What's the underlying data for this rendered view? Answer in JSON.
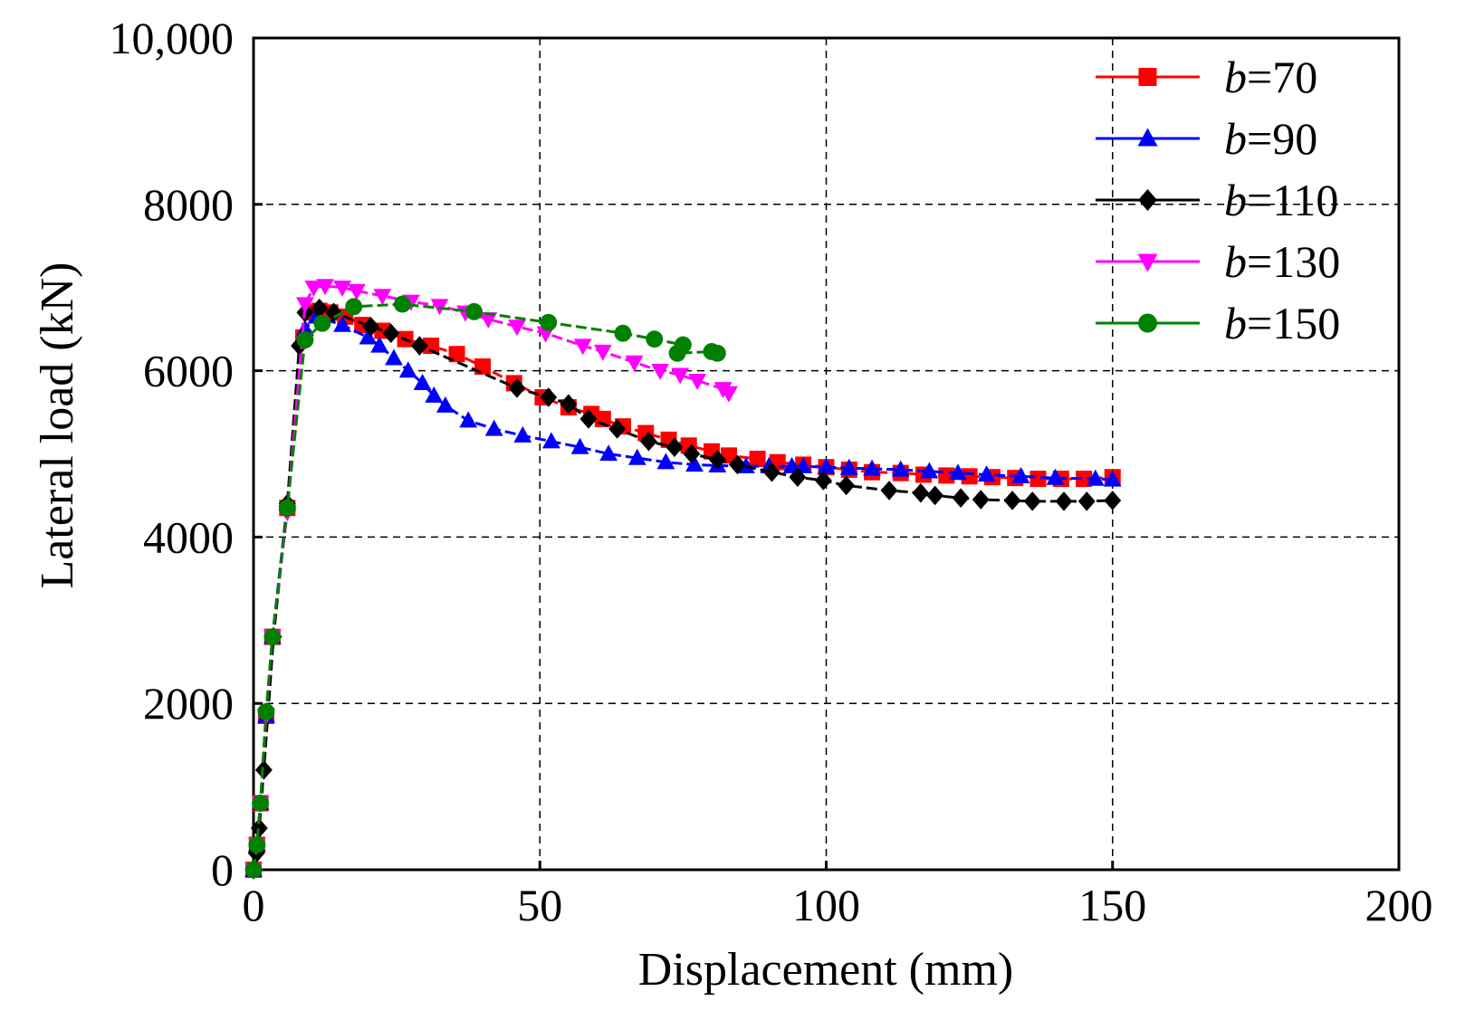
{
  "chart_data": {
    "type": "line",
    "xlabel": "Displacement (mm)",
    "ylabel": "Lateral load (kN)",
    "xlim": [
      0,
      200
    ],
    "ylim": [
      0,
      10000
    ],
    "xticks": [
      0,
      50,
      100,
      150,
      200
    ],
    "yticks": [
      0,
      2000,
      4000,
      6000,
      8000,
      10000
    ],
    "xtick_labels": [
      "0",
      "50",
      "100",
      "150",
      "200"
    ],
    "ytick_labels": [
      "0",
      "2000",
      "4000",
      "6000",
      "8000",
      "10,000"
    ],
    "grid": true,
    "legend_position": "top-right",
    "series": [
      {
        "name": "b=70",
        "var": "b",
        "value": "=70",
        "color": "#ff0000",
        "marker": "square",
        "x": [
          0,
          0.6,
          1.2,
          2.2,
          3.3,
          5.9,
          8.7,
          10.0,
          11.5,
          13.4,
          16.0,
          19.0,
          22.5,
          26.5,
          31.0,
          35.5,
          40.0,
          45.5,
          50.5,
          55.0,
          59.0,
          61.0,
          64.5,
          68.5,
          72.5,
          76.0,
          80.0,
          83.0,
          88.0,
          91.5,
          96.0,
          100.0,
          104.0,
          108.0,
          113.0,
          117.0,
          121.0,
          125.0,
          129.0,
          133.0,
          137.0,
          141.0,
          145.0,
          150.0
        ],
        "y": [
          0,
          300,
          800,
          1850,
          2800,
          4350,
          6400,
          6700,
          6720,
          6700,
          6650,
          6550,
          6480,
          6380,
          6300,
          6200,
          6050,
          5850,
          5680,
          5560,
          5480,
          5420,
          5330,
          5250,
          5170,
          5100,
          5030,
          4980,
          4940,
          4900,
          4870,
          4840,
          4810,
          4780,
          4770,
          4750,
          4740,
          4730,
          4720,
          4710,
          4700,
          4700,
          4700,
          4720
        ]
      },
      {
        "name": "b=90",
        "var": "b",
        "value": "=90",
        "color": "#0000ff",
        "marker": "triangle-up",
        "x": [
          0,
          0.6,
          1.2,
          2.2,
          3.3,
          5.9,
          9.0,
          11.0,
          15.5,
          20.0,
          22.0,
          24.5,
          27.0,
          29.5,
          31.5,
          33.5,
          37.5,
          42.0,
          47.0,
          52.0,
          57.0,
          62.0,
          67.0,
          72.0,
          77.0,
          81.0,
          86.0,
          90.0,
          94.0,
          96.0,
          100.0,
          104.0,
          108.0,
          113.0,
          118.0,
          123.0,
          128.0,
          134.0,
          140.0,
          147.0,
          150.0
        ],
        "y": [
          0,
          300,
          800,
          1850,
          2800,
          4400,
          6500,
          6650,
          6550,
          6400,
          6300,
          6150,
          6000,
          5850,
          5700,
          5580,
          5400,
          5300,
          5220,
          5150,
          5080,
          5000,
          4950,
          4900,
          4870,
          4860,
          4850,
          4850,
          4850,
          4850,
          4840,
          4830,
          4820,
          4810,
          4790,
          4770,
          4750,
          4730,
          4710,
          4700,
          4690
        ]
      },
      {
        "name": "b=110",
        "var": "b",
        "value": "=110",
        "color": "#000000",
        "marker": "diamond",
        "x": [
          0,
          0.5,
          1.0,
          1.8,
          3.5,
          5.9,
          8.0,
          9.0,
          11.5,
          14.0,
          20.5,
          24.0,
          29.0,
          46.0,
          51.5,
          55.0,
          58.5,
          63.5,
          69.0,
          73.5,
          76.5,
          81.0,
          84.5,
          90.5,
          95.0,
          99.5,
          103.5,
          111.0,
          116.5,
          119.0,
          123.5,
          127.0,
          132.5,
          136.0,
          141.5,
          145.5,
          150.0
        ],
        "y": [
          0,
          200,
          500,
          1200,
          2800,
          4400,
          6300,
          6700,
          6750,
          6700,
          6530,
          6450,
          6300,
          5790,
          5680,
          5600,
          5420,
          5300,
          5150,
          5080,
          5000,
          4930,
          4870,
          4780,
          4720,
          4680,
          4620,
          4560,
          4530,
          4500,
          4470,
          4450,
          4440,
          4430,
          4430,
          4430,
          4440
        ]
      },
      {
        "name": "b=130",
        "var": "b",
        "value": "=130",
        "color": "#ff00ff",
        "marker": "triangle-down",
        "x": [
          0,
          0.6,
          1.2,
          2.2,
          3.3,
          5.9,
          9.0,
          10.5,
          12.5,
          15.5,
          18.0,
          22.5,
          27.5,
          32.5,
          37.0,
          41.0,
          46.0,
          51.0,
          57.5,
          61.0,
          66.5,
          71.0,
          74.5,
          77.5,
          82.0,
          83.0
        ],
        "y": [
          0,
          300,
          800,
          1850,
          2800,
          4300,
          6800,
          7000,
          7020,
          7000,
          6960,
          6900,
          6830,
          6780,
          6700,
          6620,
          6530,
          6450,
          6300,
          6230,
          6100,
          6000,
          5950,
          5880,
          5780,
          5730
        ]
      },
      {
        "name": "b=150",
        "var": "b",
        "value": "=150",
        "color": "#008000",
        "marker": "circle",
        "x": [
          0,
          0.6,
          1.2,
          2.2,
          3.3,
          5.9,
          9.0,
          12.0,
          17.5,
          26.0,
          38.5,
          51.5,
          64.5,
          70.0,
          75.0,
          74.0,
          80.0,
          81.0
        ],
        "y": [
          0,
          300,
          800,
          1900,
          2800,
          4350,
          6370,
          6570,
          6770,
          6800,
          6710,
          6580,
          6450,
          6380,
          6310,
          6210,
          6230,
          6210
        ]
      }
    ]
  }
}
